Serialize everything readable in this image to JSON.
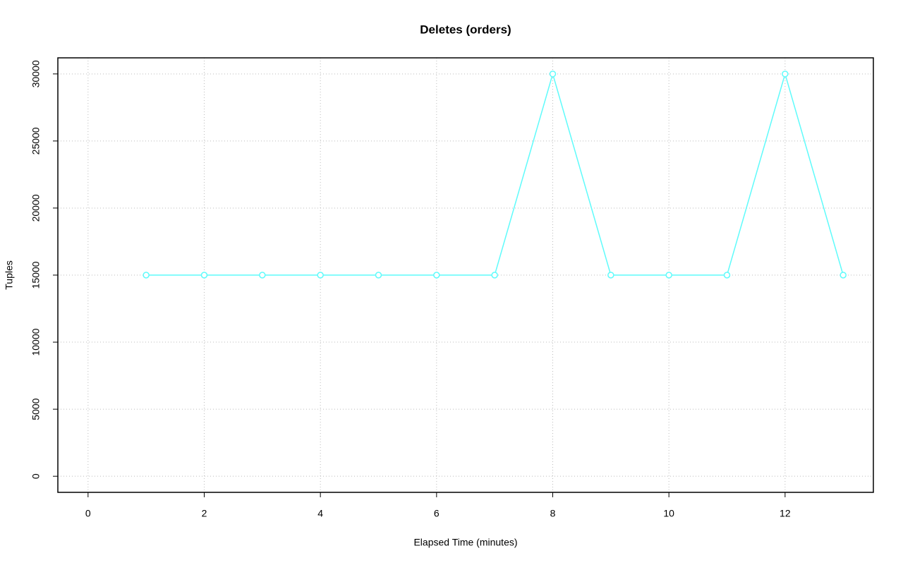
{
  "chart_data": {
    "type": "line",
    "title": "Deletes (orders)",
    "x_label": "Elapsed Time (minutes)",
    "y_label": "Tuples",
    "x": [
      1,
      2,
      3,
      4,
      5,
      6,
      7,
      8,
      9,
      10,
      11,
      12,
      13
    ],
    "series": [
      {
        "color": "#5ffbfb",
        "values": [
          15000,
          15000,
          15000,
          15000,
          15000,
          15000,
          15000,
          30000,
          15000,
          15000,
          15000,
          30000,
          15000
        ]
      }
    ],
    "xlim": [
      -0.52,
      13.52
    ],
    "ylim": [
      -1200,
      31200
    ],
    "xticks": [
      0,
      2,
      4,
      6,
      8,
      10,
      12
    ],
    "yticks": [
      0,
      5000,
      10000,
      15000,
      20000,
      25000,
      30000
    ],
    "grid": true,
    "markers": "open-circle"
  }
}
